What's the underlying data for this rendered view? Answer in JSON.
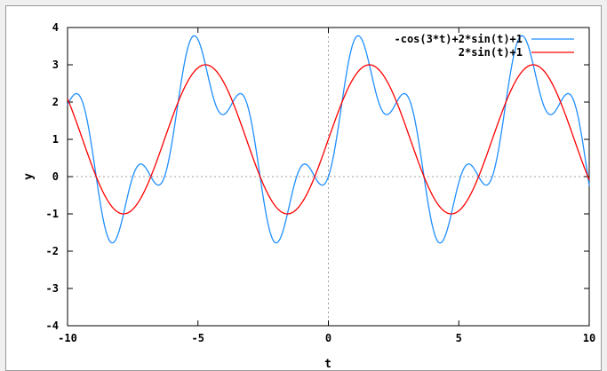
{
  "chart_data": {
    "type": "line",
    "xlabel": "t",
    "ylabel": "y",
    "xlim": [
      -10,
      10
    ],
    "ylim": [
      -4,
      4
    ],
    "x_ticks": [
      -10,
      -5,
      0,
      5,
      10
    ],
    "y_ticks": [
      -4,
      -3,
      -2,
      -1,
      0,
      1,
      2,
      3,
      4
    ],
    "zero_axes": true,
    "grid": false,
    "legend_position": "top-right",
    "x": [
      -10,
      -9.5,
      -9,
      -8.5,
      -8,
      -7.5,
      -7,
      -6.5,
      -6,
      -5.5,
      -5,
      -4.5,
      -4,
      -3.5,
      -3,
      -2.5,
      -2,
      -1.5,
      -1,
      -0.5,
      0,
      0.5,
      1,
      1.5,
      2,
      2.5,
      3,
      3.5,
      4,
      4.5,
      5,
      5.5,
      6,
      6.5,
      7,
      7.5,
      8,
      8.5,
      9,
      9.5,
      10
    ],
    "series": [
      {
        "name": "-cos(3*t)+2*sin(t)+1",
        "color": "#1f8fff",
        "expression": "-cos(3*t)+2*sin(t)+1",
        "values": [
          2.242,
          2.183,
          0.304,
          -1.73,
          -0.109,
          0.245,
          -1.862,
          -0.075,
          2.219,
          2.17,
          3.678,
          1.725,
          2.031,
          0.252,
          -0.807,
          0.637,
          -1.778,
          -0.163,
          0.327,
          -0.029,
          0.0,
          1.888,
          3.673,
          2.785,
          2.779,
          1.851,
          1.373,
          1.113,
          0.329,
          -0.866,
          -0.677,
          -0.137,
          0.101,
          1.637,
          2.434,
          2.908,
          2.57,
          2.613,
          2.057,
          0.972,
          0.067
        ]
      },
      {
        "name": "2*sin(t)+1",
        "color": "#ff0000",
        "expression": "2*sin(t)+1",
        "values": [
          2.088,
          1.15,
          0.176,
          -0.596,
          -0.979,
          -0.876,
          -0.314,
          0.572,
          1.559,
          2.411,
          2.918,
          2.955,
          2.514,
          1.702,
          0.718,
          -0.197,
          -0.819,
          -0.995,
          -0.683,
          0.041,
          1.0,
          1.959,
          2.683,
          2.995,
          2.819,
          2.197,
          1.282,
          0.298,
          -0.514,
          -0.955,
          -0.918,
          -0.411,
          0.441,
          1.428,
          2.314,
          2.876,
          2.979,
          2.596,
          1.824,
          0.85,
          -0.088
        ]
      }
    ]
  }
}
